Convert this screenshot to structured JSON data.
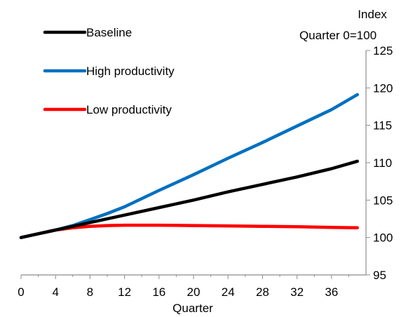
{
  "chart_data": {
    "type": "line",
    "title": "",
    "xlabel": "Quarter",
    "ylabel_lines": [
      "Index",
      "Quarter 0=100"
    ],
    "xlim": [
      0,
      40
    ],
    "ylim": [
      95,
      125
    ],
    "x_ticks": [
      0,
      4,
      8,
      12,
      16,
      20,
      24,
      28,
      32,
      36
    ],
    "y_ticks": [
      95,
      100,
      105,
      110,
      115,
      120,
      125
    ],
    "y_axis_side": "right",
    "grid": false,
    "legend_position": "top-left",
    "series": [
      {
        "name": "Baseline",
        "color": "#000000",
        "x": [
          0,
          2,
          4,
          6,
          8,
          12,
          16,
          20,
          24,
          28,
          32,
          36,
          39
        ],
        "y": [
          100,
          100.5,
          101,
          101.5,
          102,
          103,
          104,
          105,
          106.1,
          107.1,
          108.1,
          109.2,
          110.2
        ]
      },
      {
        "name": "High productivity",
        "color": "#0070c0",
        "x": [
          0,
          2,
          4,
          6,
          8,
          10,
          12,
          16,
          20,
          24,
          28,
          32,
          36,
          39
        ],
        "y": [
          100,
          100.5,
          101,
          101.6,
          102.4,
          103.2,
          104.1,
          106.3,
          108.4,
          110.6,
          112.7,
          114.9,
          117.1,
          119.1
        ]
      },
      {
        "name": "Low productivity",
        "color": "#ff0000",
        "x": [
          0,
          2,
          4,
          6,
          8,
          10,
          12,
          16,
          20,
          24,
          28,
          32,
          36,
          39
        ],
        "y": [
          100,
          100.5,
          101,
          101.3,
          101.5,
          101.6,
          101.65,
          101.65,
          101.6,
          101.55,
          101.5,
          101.45,
          101.35,
          101.3
        ]
      }
    ]
  }
}
